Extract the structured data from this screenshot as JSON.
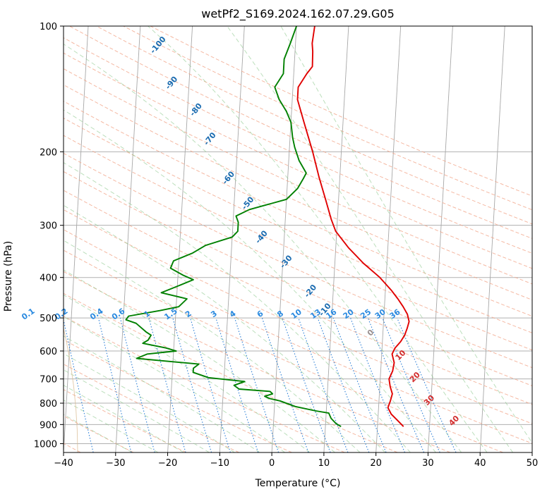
{
  "chart_data": {
    "type": "line",
    "title": "wetPf2_S169.2024.162.07.29.G05",
    "xlabel": "Temperature (°C)",
    "ylabel": "Pressure (hPa)",
    "xlim": [
      -40,
      50
    ],
    "ylim": [
      1050,
      100
    ],
    "y_scale": "log",
    "x_ticks": [
      -40,
      -30,
      -20,
      -10,
      0,
      10,
      20,
      30,
      40,
      50
    ],
    "y_ticks": [
      100,
      200,
      300,
      400,
      500,
      600,
      700,
      800,
      900,
      1000
    ],
    "x_tick_labels": [
      "−40",
      "−30",
      "−20",
      "−10",
      "0",
      "10",
      "20",
      "30",
      "40",
      "50"
    ],
    "y_tick_labels": [
      "100",
      "200",
      "300",
      "400",
      "500",
      "600",
      "700",
      "800",
      "900",
      "1000"
    ],
    "grid": true,
    "dry_adiabat_labels": [
      "-100",
      "-90",
      "-80",
      "-70",
      "-60",
      "-50",
      "-40",
      "-30",
      "-20",
      "-10"
    ],
    "mixing_ratio_labels": [
      "0.1",
      "0.2",
      "0.4",
      "0.6",
      "1",
      "1.5",
      "2",
      "3",
      "4",
      "6",
      "8",
      "10",
      "13",
      "16",
      "20",
      "25",
      "30",
      "36"
    ],
    "moist_adiabat_labels": [
      "0",
      "10",
      "20",
      "30",
      "40"
    ],
    "series": [
      {
        "color": "#e00000",
        "points": [
          [
            910,
            25
          ],
          [
            880,
            23.8
          ],
          [
            850,
            22.5
          ],
          [
            820,
            21.8
          ],
          [
            790,
            22.2
          ],
          [
            760,
            22.5
          ],
          [
            730,
            22.0
          ],
          [
            700,
            21.7
          ],
          [
            670,
            22.3
          ],
          [
            640,
            22.5
          ],
          [
            610,
            22.0
          ],
          [
            590,
            22.5
          ],
          [
            570,
            23.5
          ],
          [
            550,
            24.2
          ],
          [
            530,
            24.6
          ],
          [
            510,
            24.9
          ],
          [
            490,
            24.5
          ],
          [
            470,
            23.6
          ],
          [
            450,
            22.5
          ],
          [
            430,
            21.2
          ],
          [
            400,
            18.8
          ],
          [
            370,
            15.5
          ],
          [
            340,
            12.5
          ],
          [
            310,
            9.8
          ],
          [
            290,
            8.8
          ],
          [
            260,
            7.5
          ],
          [
            230,
            6.0
          ],
          [
            200,
            4.5
          ],
          [
            170,
            2.5
          ],
          [
            150,
            1.0
          ],
          [
            140,
            1.0
          ],
          [
            130,
            2.5
          ],
          [
            125,
            3.5
          ],
          [
            115,
            3.4
          ],
          [
            110,
            3.2
          ],
          [
            100,
            3.5
          ]
        ]
      },
      {
        "color": "#008000",
        "points": [
          [
            910,
            13
          ],
          [
            895,
            12
          ],
          [
            870,
            11
          ],
          [
            845,
            10.5
          ],
          [
            835,
            8
          ],
          [
            815,
            4
          ],
          [
            790,
            1
          ],
          [
            780,
            -1
          ],
          [
            770,
            -2
          ],
          [
            760,
            -0.5
          ],
          [
            750,
            -1
          ],
          [
            740,
            -7
          ],
          [
            725,
            -8
          ],
          [
            710,
            -6
          ],
          [
            695,
            -13
          ],
          [
            675,
            -16
          ],
          [
            660,
            -16
          ],
          [
            645,
            -15
          ],
          [
            625,
            -27
          ],
          [
            610,
            -25
          ],
          [
            600,
            -19.5
          ],
          [
            590,
            -21.5
          ],
          [
            575,
            -26
          ],
          [
            565,
            -25
          ],
          [
            550,
            -24.5
          ],
          [
            540,
            -25.5
          ],
          [
            515,
            -27.5
          ],
          [
            505,
            -29.5
          ],
          [
            495,
            -29
          ],
          [
            480,
            -23
          ],
          [
            470,
            -19.5
          ],
          [
            450,
            -18
          ],
          [
            435,
            -23
          ],
          [
            425,
            -21
          ],
          [
            405,
            -17
          ],
          [
            395,
            -19
          ],
          [
            380,
            -21.5
          ],
          [
            365,
            -21
          ],
          [
            350,
            -17.5
          ],
          [
            335,
            -15
          ],
          [
            320,
            -10
          ],
          [
            310,
            -9
          ],
          [
            295,
            -9
          ],
          [
            285,
            -9.5
          ],
          [
            275,
            -7
          ],
          [
            260,
            0
          ],
          [
            245,
            2
          ],
          [
            232,
            3
          ],
          [
            225,
            3.5
          ],
          [
            210,
            2
          ],
          [
            195,
            1
          ],
          [
            185,
            0.5
          ],
          [
            170,
            0
          ],
          [
            160,
            -1
          ],
          [
            150,
            -2.5
          ],
          [
            140,
            -3.5
          ],
          [
            130,
            -2
          ],
          [
            120,
            -2
          ],
          [
            110,
            -1
          ],
          [
            100,
            0
          ]
        ]
      }
    ]
  }
}
